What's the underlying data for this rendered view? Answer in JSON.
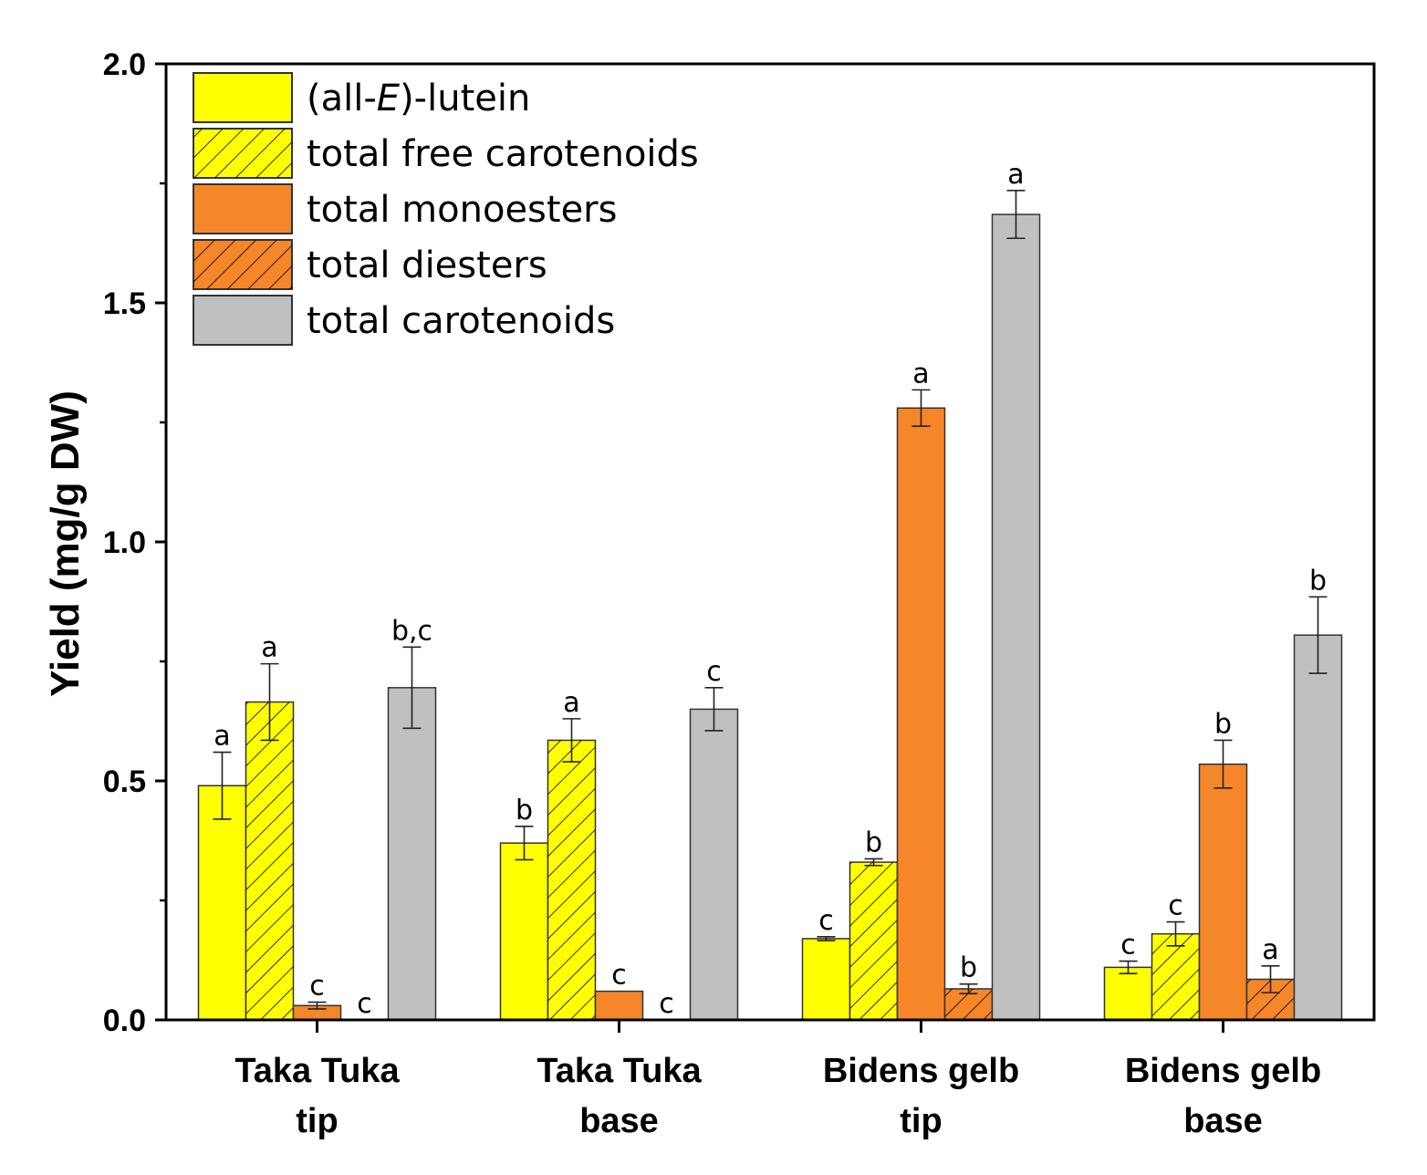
{
  "chart_data": {
    "type": "bar",
    "title": "",
    "xlabel": "",
    "ylabel": "Yield (mg/g DW)",
    "ylim": [
      0,
      2.0
    ],
    "yticks": [
      "0.0",
      "0.5",
      "1.0",
      "1.5",
      "2.0"
    ],
    "ytick_values": [
      0,
      0.5,
      1.0,
      1.5,
      2.0
    ],
    "categories": [
      [
        "Taka Tuka",
        "tip"
      ],
      [
        "Taka Tuka",
        "base"
      ],
      [
        "Bidens gelb",
        "tip"
      ],
      [
        "Bidens gelb",
        "base"
      ]
    ],
    "legend_position": "top-left",
    "series": [
      {
        "name_parts": [
          "(all-",
          "E",
          ")-lutein"
        ],
        "color": "#ffff00",
        "hatch": false,
        "values": [
          0.49,
          0.37,
          0.17,
          0.11
        ],
        "errors": [
          0.07,
          0.035,
          0.004,
          0.013
        ],
        "letters": [
          "a",
          "b",
          "c",
          "c"
        ]
      },
      {
        "name": "total free carotenoids",
        "color": "#ffff00",
        "hatch": true,
        "values": [
          0.665,
          0.585,
          0.33,
          0.18
        ],
        "errors": [
          0.08,
          0.045,
          0.007,
          0.025
        ],
        "letters": [
          "a",
          "a",
          "b",
          "c"
        ]
      },
      {
        "name": "total monoesters",
        "color": "#f5862a",
        "hatch": false,
        "values": [
          0.03,
          0.06,
          1.28,
          0.535
        ],
        "errors": [
          0.007,
          0.0,
          0.038,
          0.05
        ],
        "letters": [
          "c",
          "c",
          "a",
          "b"
        ]
      },
      {
        "name": "total diesters",
        "color": "#f5862a",
        "hatch": true,
        "values": [
          0,
          0,
          0.065,
          0.085
        ],
        "errors": [
          0,
          0,
          0.01,
          0.028
        ],
        "letters": [
          "c",
          "c",
          "b",
          "a"
        ]
      },
      {
        "name": "total carotenoids",
        "color": "#c0c0c0",
        "hatch": false,
        "values": [
          0.695,
          0.65,
          1.685,
          0.805
        ],
        "errors": [
          0.085,
          0.045,
          0.05,
          0.08
        ],
        "letters": [
          "b,c",
          "c",
          "a",
          "b"
        ]
      }
    ]
  }
}
